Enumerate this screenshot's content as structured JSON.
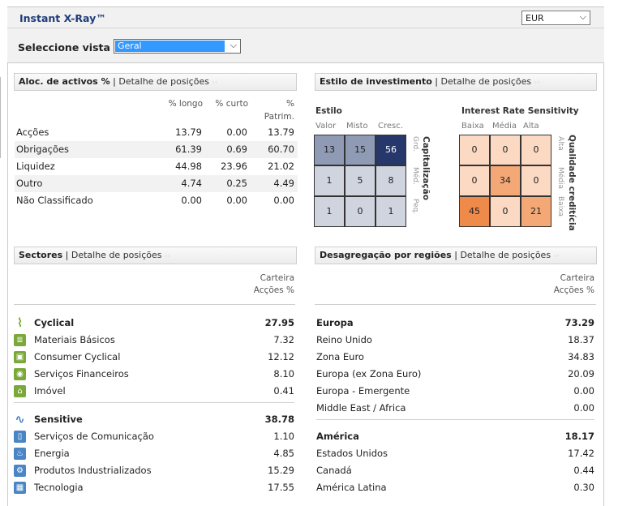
{
  "header": {
    "title": "Instant X-Ray™",
    "currency": "EUR",
    "view_label": "Seleccione vista",
    "view_value": "Geral"
  },
  "allocation": {
    "title": "Aloc. de activos %",
    "link": "Detalhe de posições",
    "columns": [
      "% longo",
      "% curto",
      "%",
      "Patrim."
    ],
    "rows": [
      {
        "label": "Acções",
        "long": "13.79",
        "short": "0.00",
        "net": "13.79"
      },
      {
        "label": "Obrigações",
        "long": "61.39",
        "short": "0.69",
        "net": "60.70"
      },
      {
        "label": "Liquidez",
        "long": "44.98",
        "short": "23.96",
        "net": "21.02"
      },
      {
        "label": "Outro",
        "long": "4.74",
        "short": "0.25",
        "net": "4.49"
      },
      {
        "label": "Não Classificado",
        "long": "0.00",
        "short": "0.00",
        "net": "0.00"
      }
    ]
  },
  "style": {
    "title": "Estilo de investimento",
    "link": "Detalhe de posições",
    "equity": {
      "title": "Estilo",
      "cols": [
        "Valor",
        "Misto",
        "Cresc."
      ],
      "rows_labels": [
        "Grd.",
        "Méd.",
        "Peq."
      ],
      "axis_title": "Capitalização",
      "values": [
        [
          "13",
          "15",
          "56"
        ],
        [
          "1",
          "5",
          "8"
        ],
        [
          "1",
          "0",
          "1"
        ]
      ],
      "colors": [
        [
          "#8f9ab5",
          "#8f9ab5",
          "#26386b"
        ],
        [
          "#cfd4de",
          "#cfd4de",
          "#cfd4de"
        ],
        [
          "#cfd4de",
          "#cfd4de",
          "#cfd4de"
        ]
      ]
    },
    "bond": {
      "title": "Interest Rate Sensitivity",
      "cols": [
        "Baixa",
        "Média",
        "Alta"
      ],
      "rows_labels": [
        "Alta",
        "Média",
        "Baixa"
      ],
      "axis_title": "Qualidade creditícia",
      "values": [
        [
          "0",
          "0",
          "0"
        ],
        [
          "0",
          "34",
          "0"
        ],
        [
          "45",
          "0",
          "21"
        ]
      ],
      "colors": [
        [
          "#fbd9c2",
          "#fbd9c2",
          "#fbd9c2"
        ],
        [
          "#fbd9c2",
          "#f4a876",
          "#fbd9c2"
        ],
        [
          "#ee8a4a",
          "#fbd9c2",
          "#f4a876"
        ]
      ]
    }
  },
  "sectors": {
    "title": "Sectores",
    "link": "Detalhe de posições",
    "col1": "Carteira",
    "col2": "Acções %",
    "rows": [
      {
        "name": "Cyclical",
        "value": "27.95",
        "bold": true,
        "icon": "cyclical-icon"
      },
      {
        "name": "Materiais Básicos",
        "value": "7.32",
        "icon": "basic-materials-icon"
      },
      {
        "name": "Consumer Cyclical",
        "value": "12.12",
        "icon": "consumer-cyclical-icon"
      },
      {
        "name": "Serviços Financeiros",
        "value": "8.10",
        "icon": "financial-services-icon"
      },
      {
        "name": "Imóvel",
        "value": "0.41",
        "icon": "real-estate-icon"
      },
      {
        "name": "Sensitive",
        "value": "38.78",
        "bold": true,
        "icon": "sensitive-icon"
      },
      {
        "name": "Serviços de Comunicação",
        "value": "1.10",
        "icon": "communication-icon"
      },
      {
        "name": "Energia",
        "value": "4.85",
        "icon": "energy-icon"
      },
      {
        "name": "Produtos Industrializados",
        "value": "15.29",
        "icon": "industrials-icon"
      },
      {
        "name": "Tecnologia",
        "value": "17.55",
        "icon": "technology-icon"
      }
    ]
  },
  "regions": {
    "title": "Desagregação por regiões",
    "link": "Detalhe de posições",
    "col1": "Carteira",
    "col2": "Acções %",
    "rows": [
      {
        "name": "Europa",
        "value": "73.29",
        "bold": true
      },
      {
        "name": "Reino Unido",
        "value": "18.37"
      },
      {
        "name": "Zona Euro",
        "value": "34.83"
      },
      {
        "name": "Europa (ex Zona Euro)",
        "value": "20.09"
      },
      {
        "name": "Europa - Emergente",
        "value": "0.00"
      },
      {
        "name": "Middle East / Africa",
        "value": "0.00"
      },
      {
        "name": "América",
        "value": "18.17",
        "bold": true
      },
      {
        "name": "Estados Unidos",
        "value": "17.42"
      },
      {
        "name": "Canadá",
        "value": "0.44"
      },
      {
        "name": "América Latina",
        "value": "0.30"
      }
    ]
  }
}
